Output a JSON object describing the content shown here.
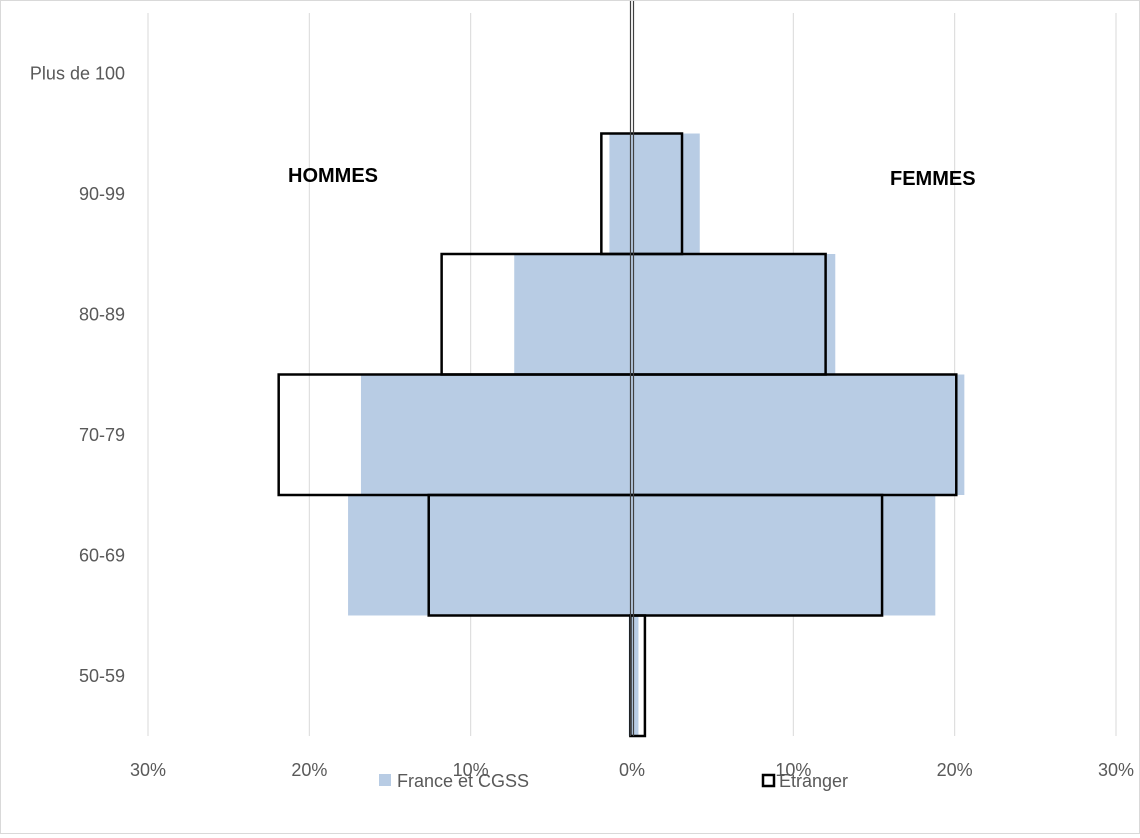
{
  "chart_data": {
    "type": "bar",
    "orientation": "horizontal",
    "subtype": "population-pyramid",
    "categories": [
      "50-59",
      "60-69",
      "70-79",
      "80-89",
      "90-99",
      "Plus de 100"
    ],
    "xlim": [
      -30,
      30
    ],
    "x_ticks": [
      -30,
      -20,
      -10,
      0,
      10,
      20,
      30
    ],
    "x_tick_labels": [
      "30%",
      "20%",
      "10%",
      "0%",
      "10%",
      "20%",
      "30%"
    ],
    "grid": true,
    "legend_position": "bottom",
    "side_labels": {
      "left": "HOMMES",
      "right": "FEMMES"
    },
    "series": [
      {
        "name": "France et CGSS",
        "style": "filled",
        "color": "#b8cce4",
        "hommes": [
          0.2,
          17.6,
          16.8,
          7.3,
          1.4,
          0
        ],
        "femmes": [
          0.4,
          18.8,
          20.6,
          12.6,
          4.2,
          0
        ]
      },
      {
        "name": "Etranger",
        "style": "outline",
        "color": "#000000",
        "hommes": [
          0.1,
          12.6,
          21.9,
          11.8,
          1.9,
          0
        ],
        "femmes": [
          0.8,
          15.5,
          20.1,
          12.0,
          3.1,
          0
        ]
      }
    ]
  }
}
